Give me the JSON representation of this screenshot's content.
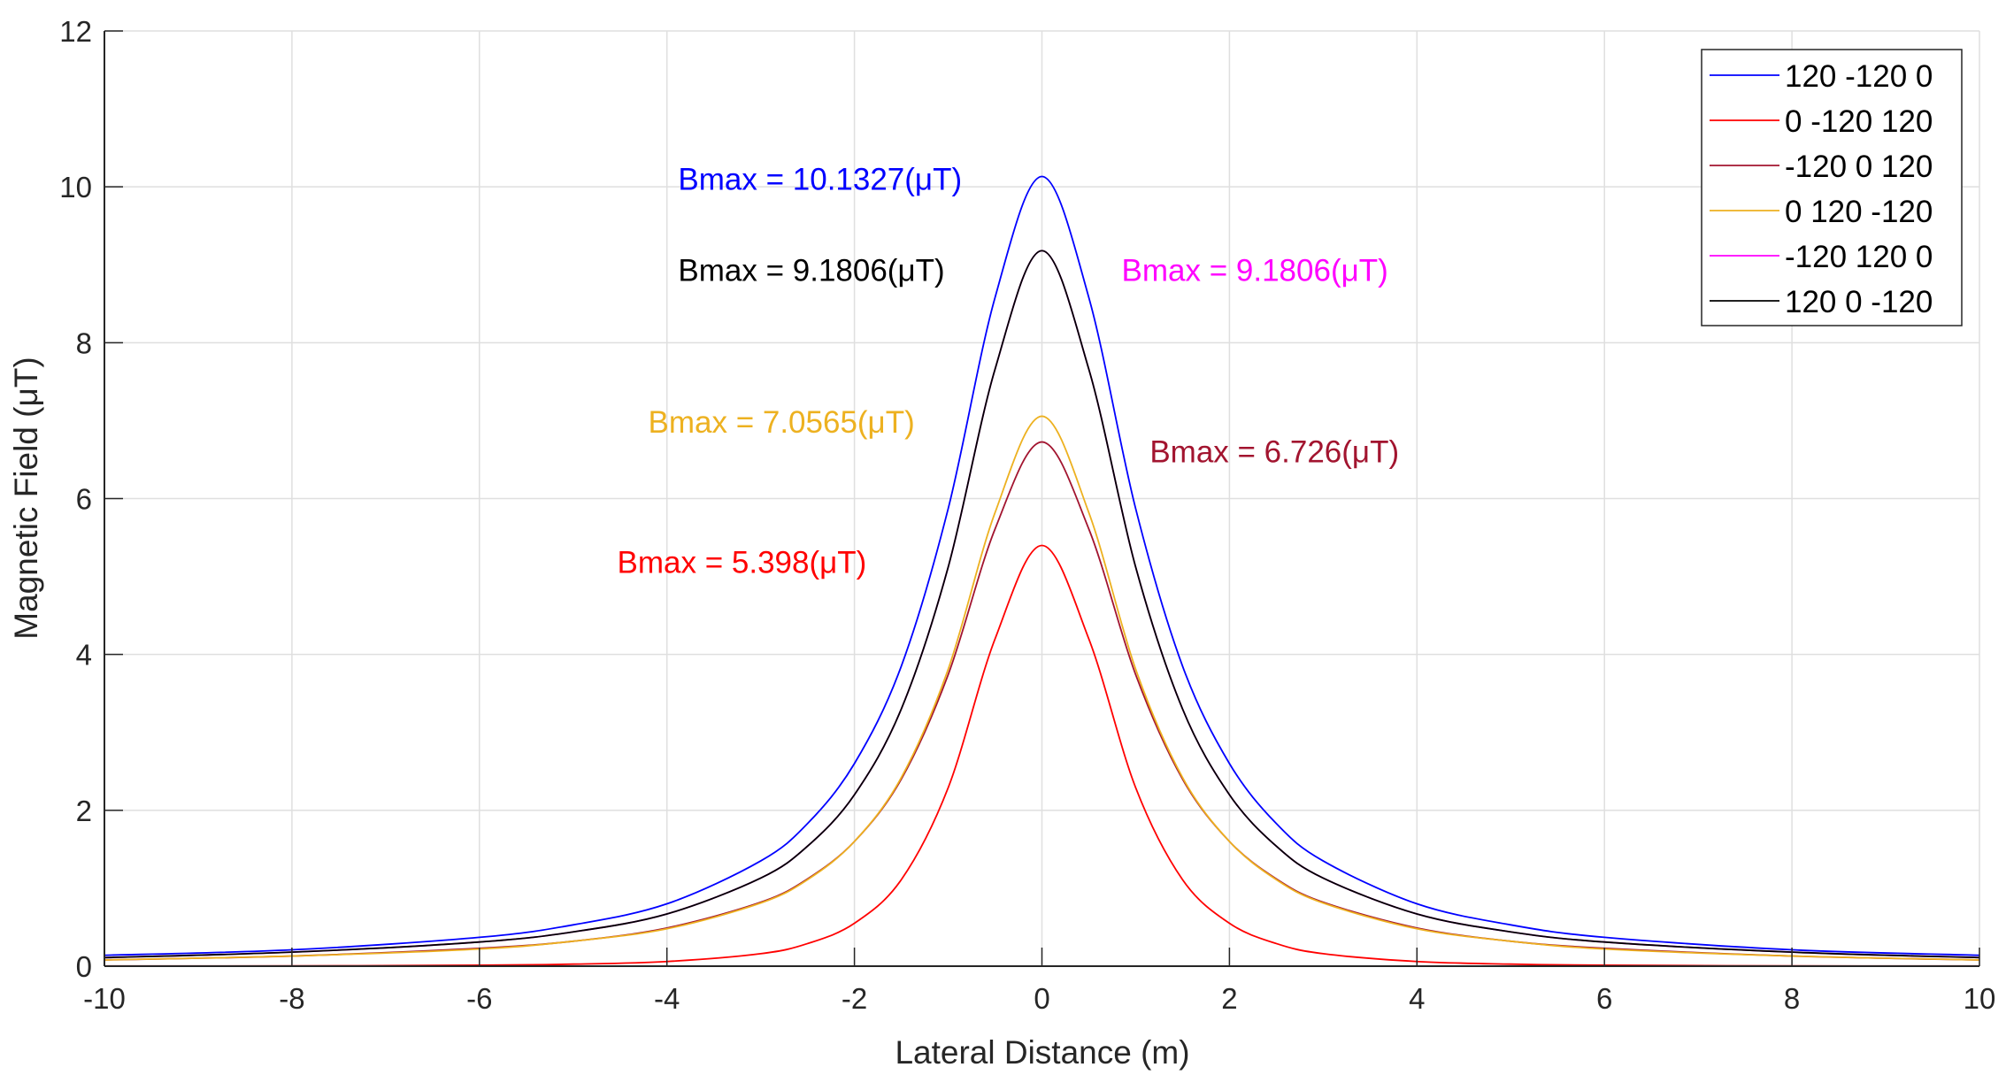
{
  "chart_data": {
    "type": "line",
    "title": "",
    "xlabel": "Lateral Distance (m)",
    "ylabel": "Magnetic Field (μT)",
    "xlim": [
      -10,
      10
    ],
    "ylim": [
      0,
      12
    ],
    "xticks": [
      "-10",
      "-8",
      "-6",
      "-4",
      "-2",
      "0",
      "2",
      "4",
      "6",
      "8",
      "10"
    ],
    "yticks": [
      "0",
      "2",
      "4",
      "6",
      "8",
      "10",
      "12"
    ],
    "grid": true,
    "legend_position": "top-right",
    "x": [
      -10,
      -8,
      -6,
      -5,
      -4,
      -3,
      -2.5,
      -2,
      -1.5,
      -1,
      -0.5,
      0,
      0.5,
      1,
      1.5,
      2,
      2.5,
      3,
      4,
      5,
      6,
      8,
      10
    ],
    "series": [
      {
        "name": "120 -120 0",
        "color": "#0000ff",
        "values": [
          0.14,
          0.21,
          0.37,
          0.53,
          0.8,
          1.35,
          1.83,
          2.6,
          3.85,
          5.87,
          8.58,
          10.1327,
          8.58,
          5.87,
          3.85,
          2.6,
          1.83,
          1.35,
          0.8,
          0.53,
          0.37,
          0.21,
          0.14
        ]
      },
      {
        "name": "0 -120 120",
        "color": "#ff0000",
        "values": [
          0.002,
          0.004,
          0.012,
          0.026,
          0.06,
          0.16,
          0.29,
          0.55,
          1.11,
          2.29,
          4.2,
          5.398,
          4.2,
          2.29,
          1.11,
          0.55,
          0.29,
          0.16,
          0.06,
          0.026,
          0.012,
          0.004,
          0.002
        ]
      },
      {
        "name": "-120 0 120",
        "color": "#a2142f",
        "values": [
          0.08,
          0.13,
          0.23,
          0.32,
          0.49,
          0.82,
          1.12,
          1.6,
          2.4,
          3.74,
          5.61,
          6.726,
          5.61,
          3.74,
          2.4,
          1.6,
          1.12,
          0.82,
          0.49,
          0.32,
          0.23,
          0.13,
          0.08
        ]
      },
      {
        "name": "0 120 -120",
        "color": "#edb120",
        "values": [
          0.08,
          0.13,
          0.22,
          0.32,
          0.48,
          0.81,
          1.11,
          1.6,
          2.42,
          3.81,
          5.82,
          7.0565,
          5.82,
          3.81,
          2.42,
          1.6,
          1.11,
          0.81,
          0.48,
          0.32,
          0.22,
          0.13,
          0.08
        ]
      },
      {
        "name": "-120 120 0",
        "color": "#ff00ff",
        "values": [
          0.11,
          0.18,
          0.31,
          0.44,
          0.67,
          1.13,
          1.54,
          2.2,
          3.3,
          5.12,
          7.66,
          9.1806,
          7.66,
          5.12,
          3.3,
          2.2,
          1.54,
          1.13,
          0.67,
          0.44,
          0.31,
          0.18,
          0.11
        ]
      },
      {
        "name": "120 0 -120",
        "color": "#000000",
        "values": [
          0.11,
          0.18,
          0.31,
          0.44,
          0.67,
          1.13,
          1.54,
          2.2,
          3.3,
          5.12,
          7.66,
          9.1806,
          7.66,
          5.12,
          3.3,
          2.2,
          1.54,
          1.13,
          0.67,
          0.44,
          0.31,
          0.18,
          0.11
        ]
      }
    ],
    "annotations": [
      {
        "text": "Bmax = 10.1327(μT)",
        "color": "#0000ff",
        "x": -3.88,
        "y": 10.1
      },
      {
        "text": "Bmax = 9.1806(μT)",
        "color": "#000000",
        "x": -3.88,
        "y": 8.93
      },
      {
        "text": "Bmax = 9.1806(μT)",
        "color": "#ff00ff",
        "x": 0.85,
        "y": 8.93
      },
      {
        "text": "Bmax = 7.0565(μT)",
        "color": "#edb120",
        "x": -4.2,
        "y": 6.98
      },
      {
        "text": "Bmax = 6.726(μT)",
        "color": "#a2142f",
        "x": 1.15,
        "y": 6.6
      },
      {
        "text": "Bmax = 5.398(μT)",
        "color": "#ff0000",
        "x": -4.53,
        "y": 5.18
      }
    ]
  }
}
